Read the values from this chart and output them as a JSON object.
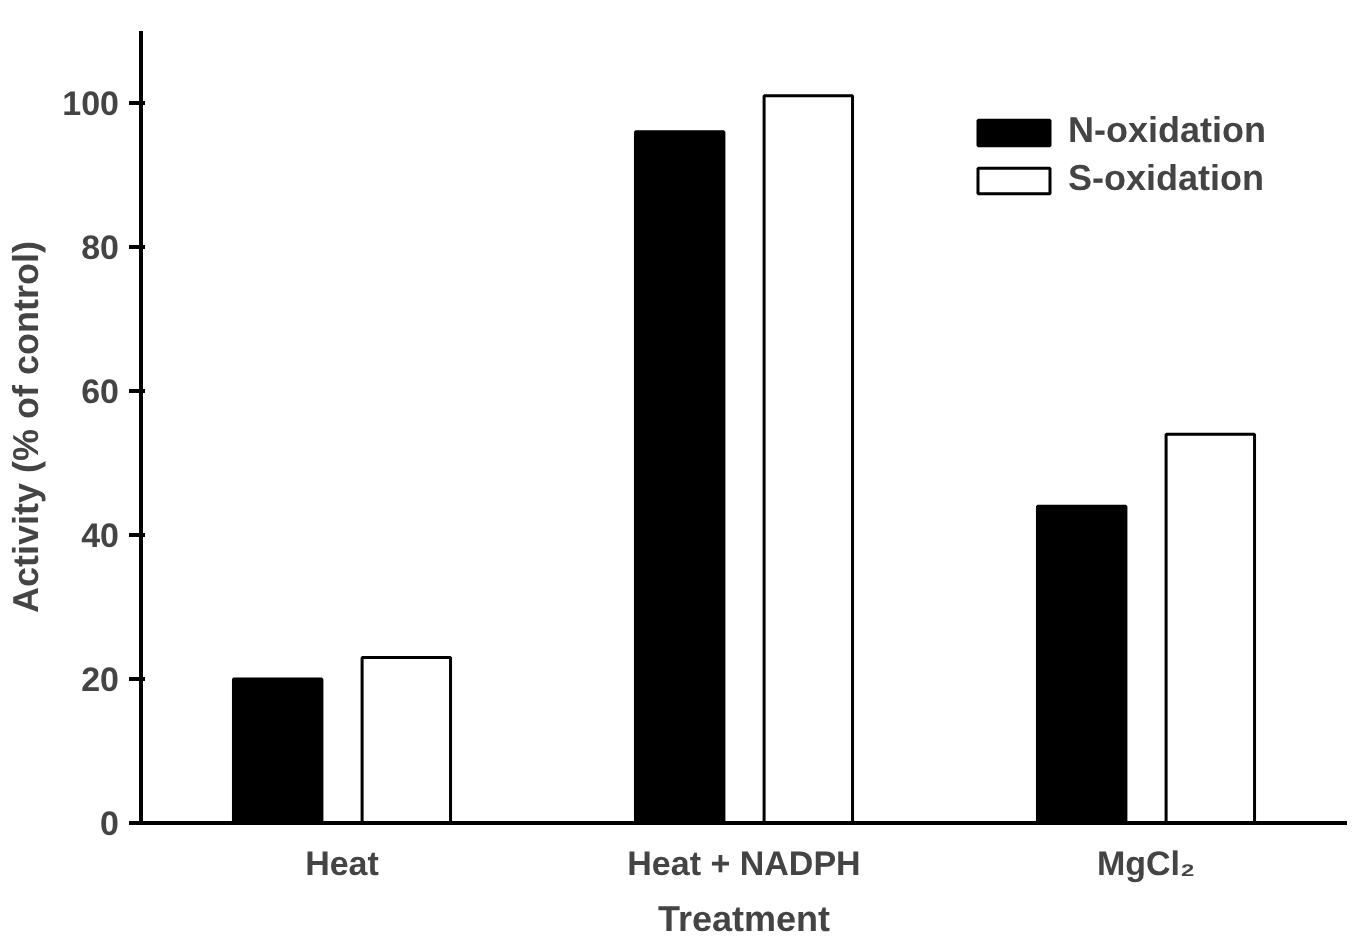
{
  "chart_data": {
    "type": "bar",
    "xlabel": "Treatment",
    "ylabel": "Activity (% of control)",
    "categories": [
      "Heat",
      "Heat + NADPH",
      "MgCl₂"
    ],
    "series": [
      {
        "name": "N-oxidation",
        "color": "#000000",
        "values": [
          20,
          96,
          44
        ]
      },
      {
        "name": "S-oxidation",
        "color": "#ffffff",
        "values": [
          23,
          101,
          54
        ]
      }
    ],
    "ylim": [
      0,
      110
    ],
    "yticks": [
      0,
      20,
      40,
      60,
      80,
      100
    ],
    "grid": false,
    "legend": "top right"
  }
}
